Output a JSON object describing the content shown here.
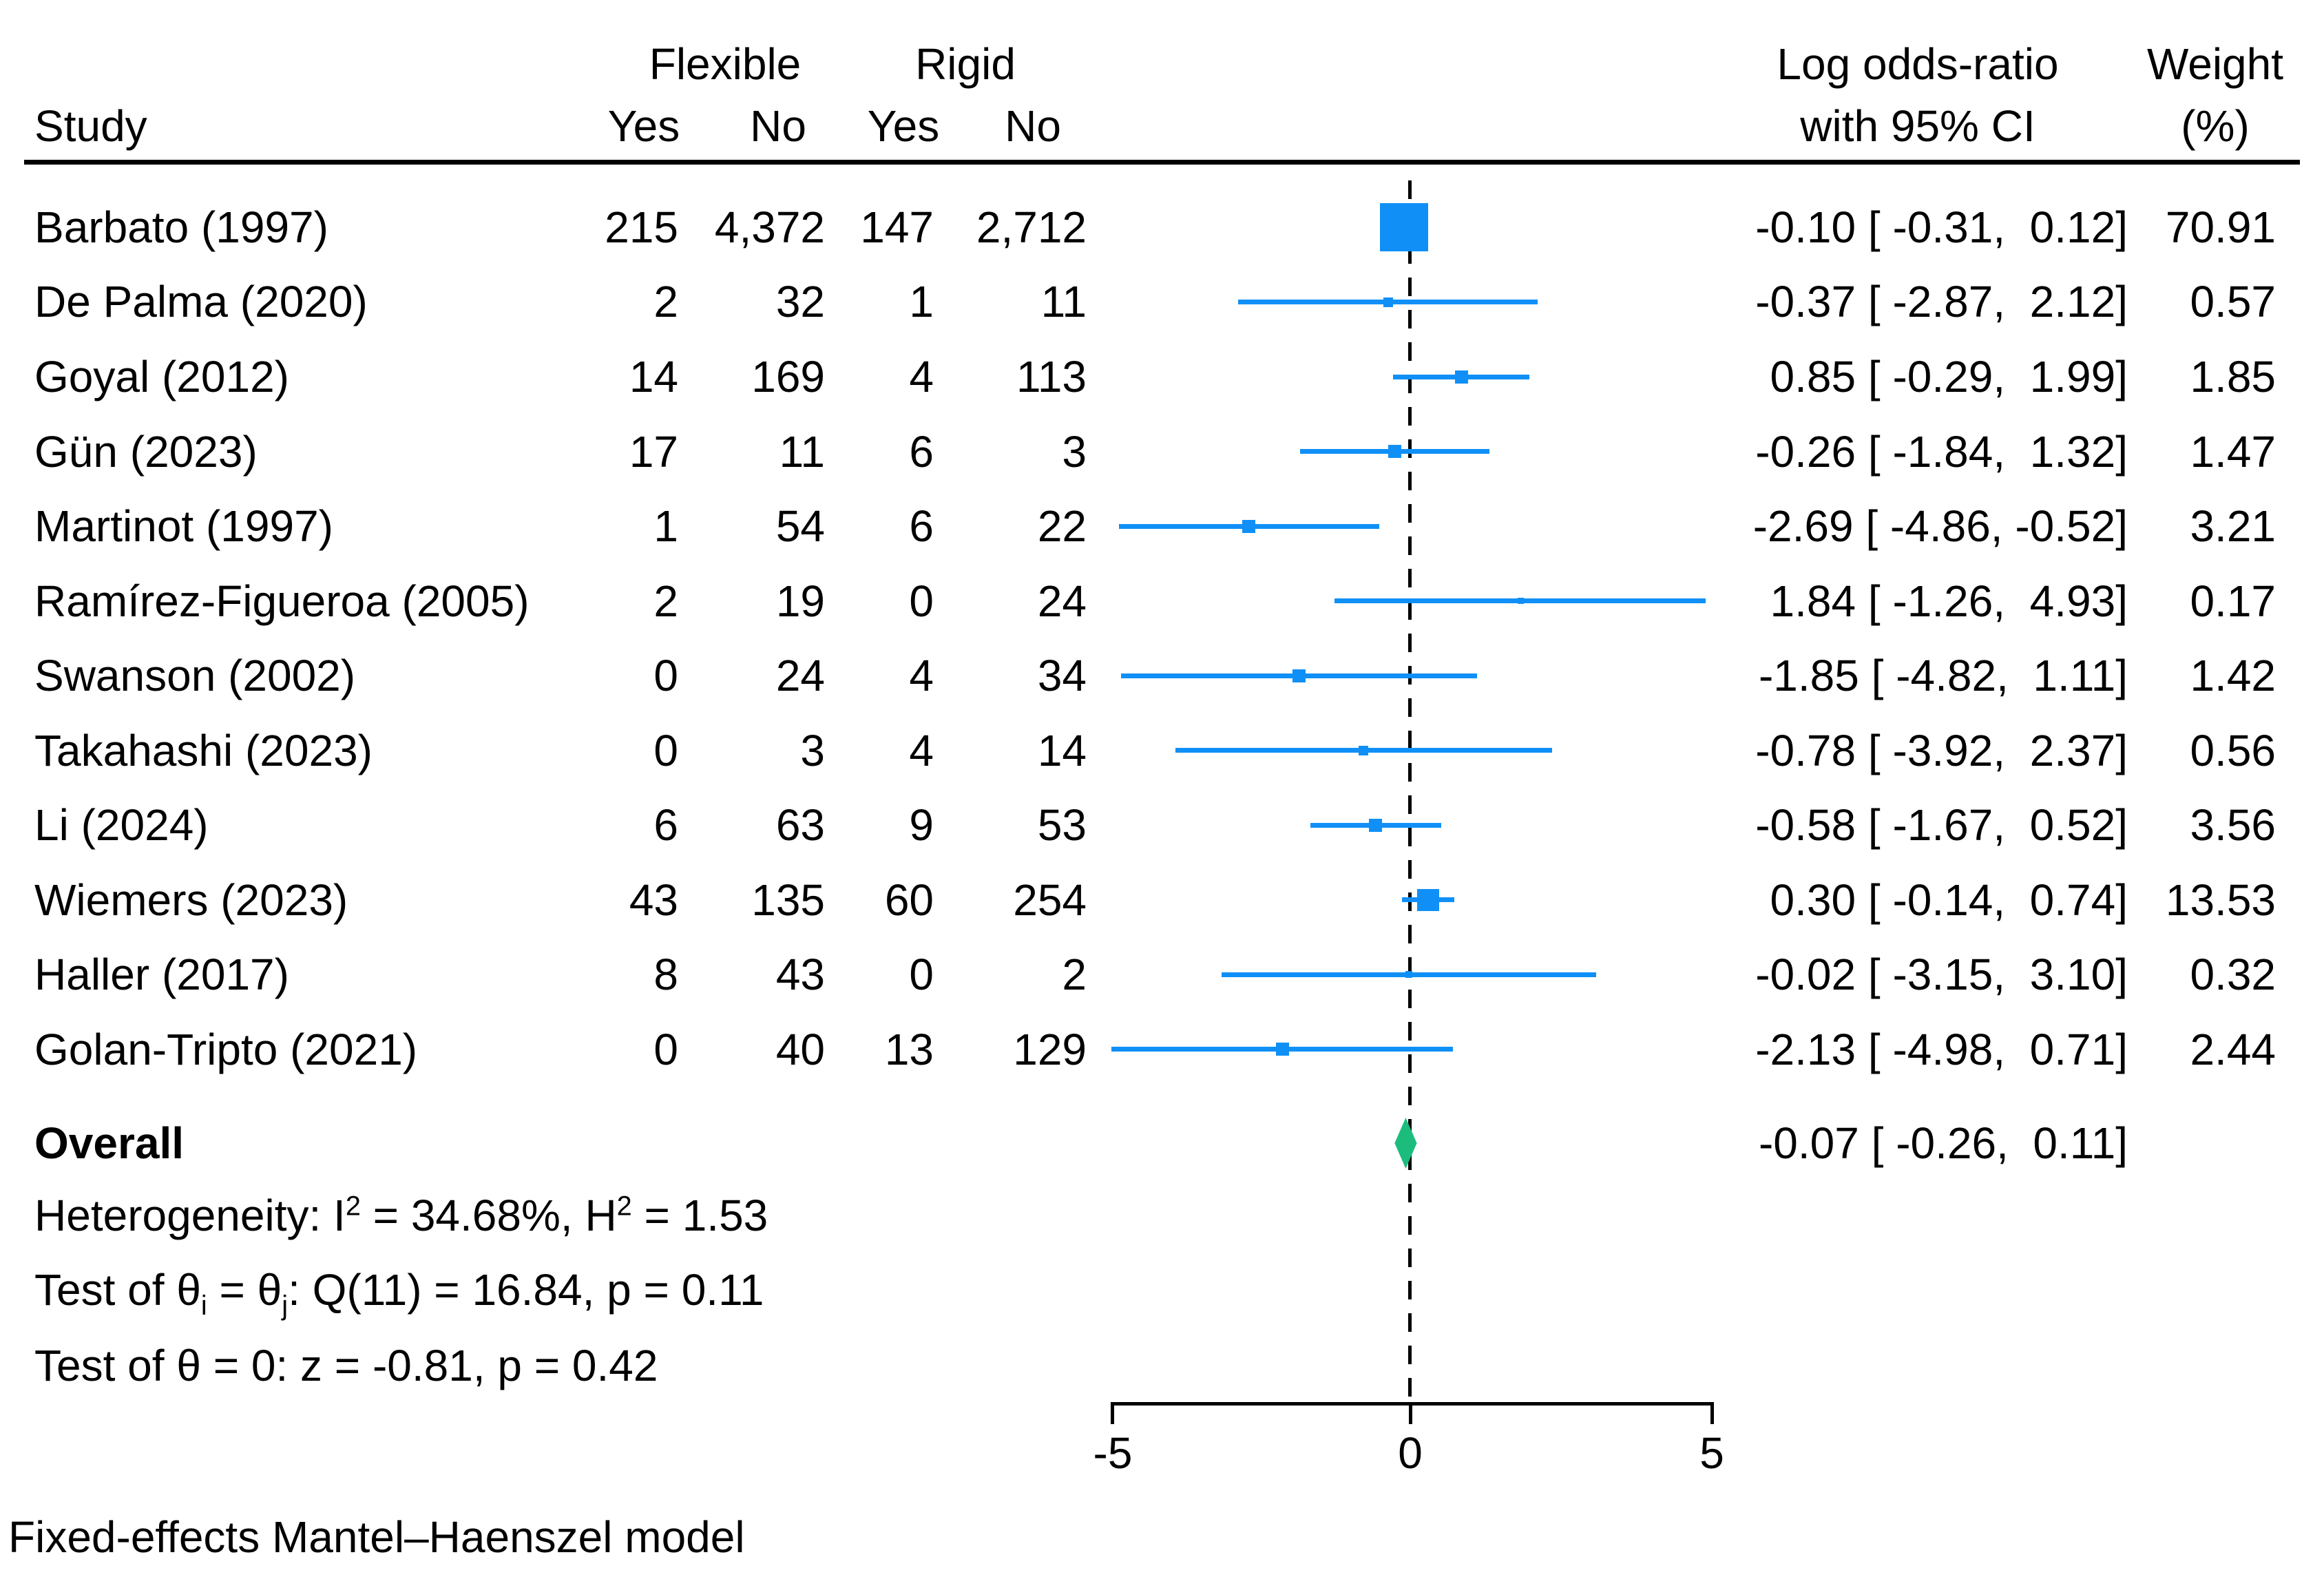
{
  "header": {
    "study": "Study",
    "group1": "Flexible",
    "group2": "Rigid",
    "yes1": "Yes",
    "no1": "No",
    "yes2": "Yes",
    "no2": "No",
    "effect_line1": "Log odds-ratio",
    "effect_line2": "with 95% CI",
    "weight_line1": "Weight",
    "weight_line2": "(%)"
  },
  "chart_data": {
    "type": "forest",
    "effect_measure": "Log odds-ratio",
    "xlim": [
      -5,
      5
    ],
    "ticks": [
      -5,
      0,
      5
    ],
    "tick_labels": [
      "-5",
      "0",
      "5"
    ],
    "zero_line": 0,
    "studies": [
      {
        "name": "Barbato (1997)",
        "flex_yes": "215",
        "flex_no": "4,372",
        "rigid_yes": "147",
        "rigid_no": "2,712",
        "est": -0.1,
        "lo": -0.31,
        "hi": 0.12,
        "ci": "-0.10 [ -0.31,  0.12]",
        "weight": "70.91",
        "weight_value": 70.91
      },
      {
        "name": "De Palma (2020)",
        "flex_yes": "2",
        "flex_no": "32",
        "rigid_yes": "1",
        "rigid_no": "11",
        "est": -0.37,
        "lo": -2.87,
        "hi": 2.12,
        "ci": "-0.37 [ -2.87,  2.12]",
        "weight": "0.57",
        "weight_value": 0.57
      },
      {
        "name": "Goyal (2012)",
        "flex_yes": "14",
        "flex_no": "169",
        "rigid_yes": "4",
        "rigid_no": "113",
        "est": 0.85,
        "lo": -0.29,
        "hi": 1.99,
        "ci": "0.85 [ -0.29,  1.99]",
        "weight": "1.85",
        "weight_value": 1.85
      },
      {
        "name": "Gün (2023)",
        "flex_yes": "17",
        "flex_no": "11",
        "rigid_yes": "6",
        "rigid_no": "3",
        "est": -0.26,
        "lo": -1.84,
        "hi": 1.32,
        "ci": "-0.26 [ -1.84,  1.32]",
        "weight": "1.47",
        "weight_value": 1.47
      },
      {
        "name": "Martinot (1997)",
        "flex_yes": "1",
        "flex_no": "54",
        "rigid_yes": "6",
        "rigid_no": "22",
        "est": -2.69,
        "lo": -4.86,
        "hi": -0.52,
        "ci": "-2.69 [ -4.86, -0.52]",
        "weight": "3.21",
        "weight_value": 3.21
      },
      {
        "name": "Ramírez-Figueroa (2005)",
        "flex_yes": "2",
        "flex_no": "19",
        "rigid_yes": "0",
        "rigid_no": "24",
        "est": 1.84,
        "lo": -1.26,
        "hi": 4.93,
        "ci": "1.84 [ -1.26,  4.93]",
        "weight": "0.17",
        "weight_value": 0.17
      },
      {
        "name": "Swanson (2002)",
        "flex_yes": "0",
        "flex_no": "24",
        "rigid_yes": "4",
        "rigid_no": "34",
        "est": -1.85,
        "lo": -4.82,
        "hi": 1.11,
        "ci": "-1.85 [ -4.82,  1.11]",
        "weight": "1.42",
        "weight_value": 1.42
      },
      {
        "name": "Takahashi (2023)",
        "flex_yes": "0",
        "flex_no": "3",
        "rigid_yes": "4",
        "rigid_no": "14",
        "est": -0.78,
        "lo": -3.92,
        "hi": 2.37,
        "ci": "-0.78 [ -3.92,  2.37]",
        "weight": "0.56",
        "weight_value": 0.56
      },
      {
        "name": "Li (2024)",
        "flex_yes": "6",
        "flex_no": "63",
        "rigid_yes": "9",
        "rigid_no": "53",
        "est": -0.58,
        "lo": -1.67,
        "hi": 0.52,
        "ci": "-0.58 [ -1.67,  0.52]",
        "weight": "3.56",
        "weight_value": 3.56
      },
      {
        "name": "Wiemers (2023)",
        "flex_yes": "43",
        "flex_no": "135",
        "rigid_yes": "60",
        "rigid_no": "254",
        "est": 0.3,
        "lo": -0.14,
        "hi": 0.74,
        "ci": "0.30 [ -0.14,  0.74]",
        "weight": "13.53",
        "weight_value": 13.53
      },
      {
        "name": "Haller (2017)",
        "flex_yes": "8",
        "flex_no": "43",
        "rigid_yes": "0",
        "rigid_no": "2",
        "est": -0.02,
        "lo": -3.15,
        "hi": 3.1,
        "ci": "-0.02 [ -3.15,  3.10]",
        "weight": "0.32",
        "weight_value": 0.32
      },
      {
        "name": "Golan-Tripto (2021)",
        "flex_yes": "0",
        "flex_no": "40",
        "rigid_yes": "13",
        "rigid_no": "129",
        "est": -2.13,
        "lo": -4.98,
        "hi": 0.71,
        "ci": "-2.13 [ -4.98,  0.71]",
        "weight": "2.44",
        "weight_value": 2.44
      }
    ],
    "overall": {
      "label": "Overall",
      "est": -0.07,
      "lo": -0.26,
      "hi": 0.11,
      "ci": "-0.07 [ -0.26,  0.11]"
    }
  },
  "stats": {
    "heterogeneity": [
      "Heterogeneity: I",
      "2",
      " = 34.68%, H",
      "2",
      " = 1.53"
    ],
    "test_q": [
      "Test of θ",
      "i",
      " = θ",
      "j",
      ": Q(11) = 16.84, p = 0.11"
    ],
    "test_z": "Test of θ = 0: z = -0.81, p = 0.42"
  },
  "footer": {
    "model": "Fixed-effects Mantel–Haenszel model"
  },
  "colors": {
    "marker_blue": "#1090F7",
    "diamond_green": "#1CBC7C",
    "line_black": "#000000"
  }
}
